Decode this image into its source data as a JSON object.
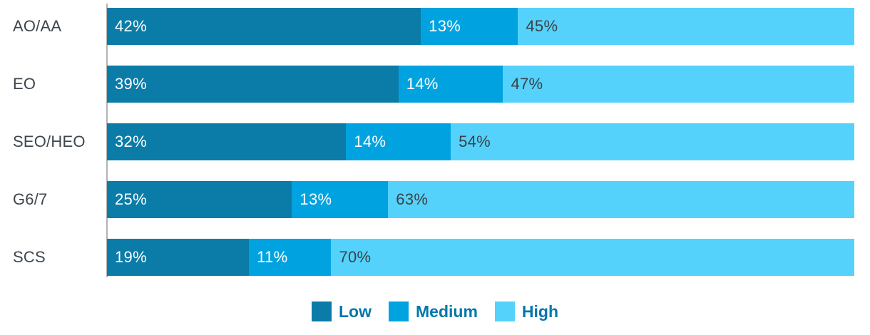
{
  "chart_data": {
    "type": "bar",
    "orientation": "horizontal-stacked",
    "title": "",
    "xlabel": "",
    "ylabel": "",
    "xlim": [
      0,
      100
    ],
    "grid": false,
    "legend_position": "bottom",
    "value_suffix": "%",
    "categories": [
      "AO/AA",
      "EO",
      "SEO/HEO",
      "G6/7",
      "SCS"
    ],
    "series": [
      {
        "name": "Low",
        "color": "#0a7ca7",
        "label_color": "#ffffff",
        "values": [
          42,
          39,
          32,
          25,
          19
        ]
      },
      {
        "name": "Medium",
        "color": "#00a3e0",
        "label_color": "#ffffff",
        "values": [
          13,
          14,
          14,
          13,
          11
        ]
      },
      {
        "name": "High",
        "color": "#55d2fb",
        "label_color": "#3a4248",
        "values": [
          45,
          47,
          54,
          63,
          70
        ]
      }
    ],
    "legend": [
      "Low",
      "Medium",
      "High"
    ]
  },
  "colors": {
    "background": "#ffffff",
    "category_label": "#3d464e",
    "legend_text": "#0077ad",
    "axis_line": "#b3b3b3"
  }
}
